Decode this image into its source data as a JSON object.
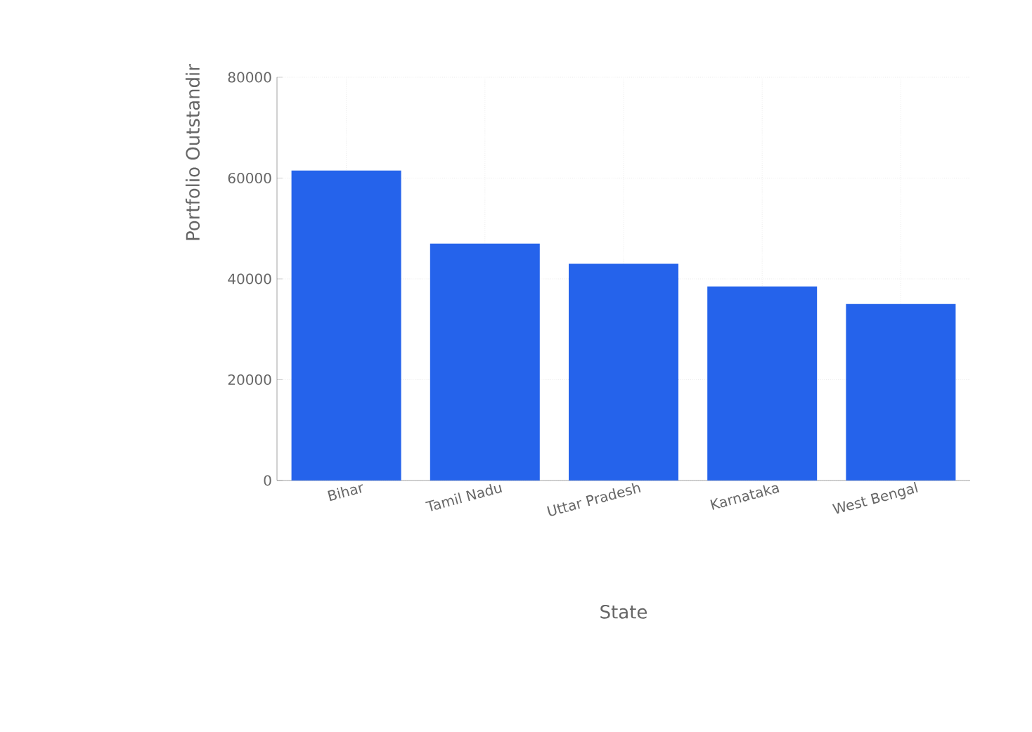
{
  "chart_data": {
    "type": "bar",
    "xlabel": "State",
    "ylabel": "Portfolio Outstandir",
    "categories": [
      "Bihar",
      "Tamil Nadu",
      "Uttar Pradesh",
      "Karnataka",
      "West Bengal"
    ],
    "values": [
      61500,
      47000,
      43000,
      38500,
      35000
    ],
    "color": "#2563eb",
    "ylim": [
      0,
      80000
    ],
    "yticks": [
      0,
      20000,
      40000,
      60000,
      80000
    ],
    "grid": true
  }
}
